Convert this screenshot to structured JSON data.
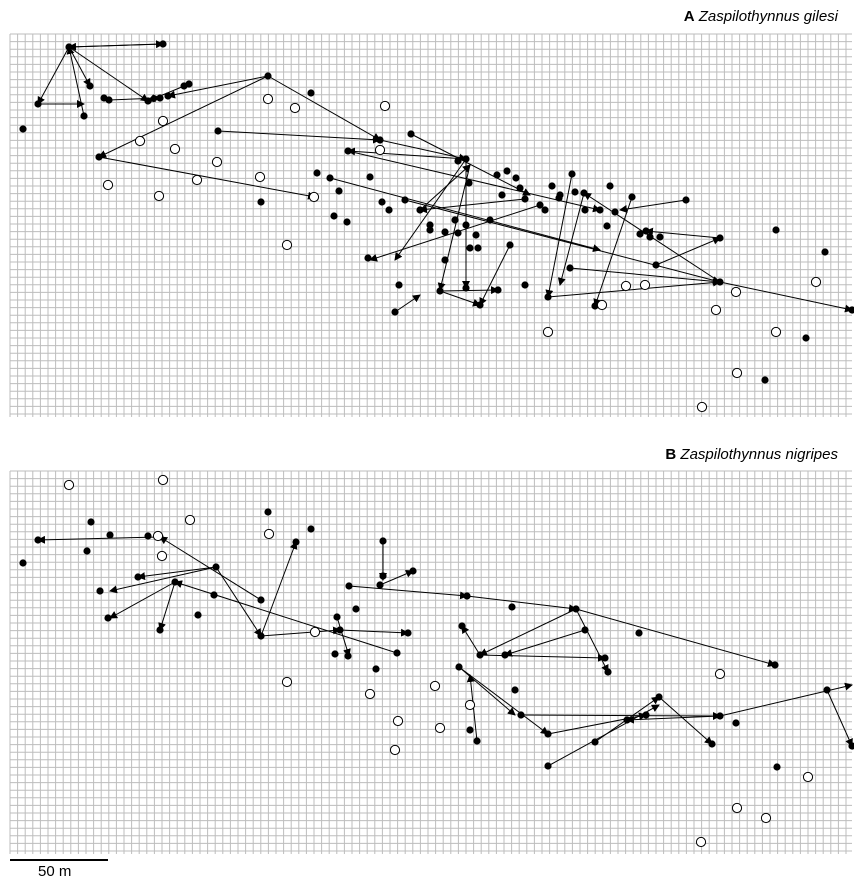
{
  "panels": [
    {
      "letter": "A",
      "species": "Zaspilothynnus gilesi"
    },
    {
      "letter": "B",
      "species": "Zaspilothynnus nigripes"
    }
  ],
  "scale_bar": {
    "label": "50 m"
  },
  "legend_semantics": {
    "filled_circle": "recaptured / observed",
    "open_circle": "unvisited",
    "arrow": "movement"
  },
  "colors": {
    "grid": "#bdbdbd",
    "ink": "#000000",
    "background": "#ffffff"
  }
}
